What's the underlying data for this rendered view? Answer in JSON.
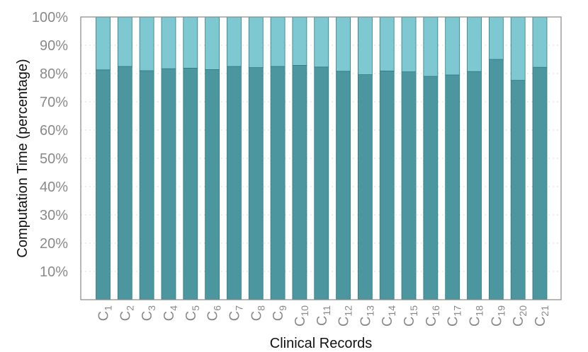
{
  "chart_data": {
    "type": "bar",
    "stacked": true,
    "title": "",
    "xlabel": "Clinical Records",
    "ylabel": "Computation Time (percentage)",
    "ylim": [
      0,
      100
    ],
    "yticks": [
      "10%",
      "20%",
      "30%",
      "40%",
      "50%",
      "60%",
      "70%",
      "80%",
      "90%",
      "100%"
    ],
    "grid": true,
    "legend": "none",
    "categories": [
      {
        "base": "C",
        "sub": "1"
      },
      {
        "base": "C",
        "sub": "2"
      },
      {
        "base": "C",
        "sub": "3"
      },
      {
        "base": "C",
        "sub": "4"
      },
      {
        "base": "C",
        "sub": "5"
      },
      {
        "base": "C",
        "sub": "6"
      },
      {
        "base": "C",
        "sub": "7"
      },
      {
        "base": "C",
        "sub": "8"
      },
      {
        "base": "C",
        "sub": "9"
      },
      {
        "base": "C",
        "sub": "10"
      },
      {
        "base": "C",
        "sub": "11"
      },
      {
        "base": "C",
        "sub": "12"
      },
      {
        "base": "C",
        "sub": "13"
      },
      {
        "base": "C",
        "sub": "14"
      },
      {
        "base": "C",
        "sub": "15"
      },
      {
        "base": "C",
        "sub": "16"
      },
      {
        "base": "C",
        "sub": "17"
      },
      {
        "base": "C",
        "sub": "18"
      },
      {
        "base": "C",
        "sub": "19"
      },
      {
        "base": "C",
        "sub": "20"
      },
      {
        "base": "C",
        "sub": "21"
      }
    ],
    "series": [
      {
        "values": [
          81.3,
          82.5,
          81.0,
          81.7,
          81.9,
          81.4,
          82.5,
          82.1,
          82.5,
          82.9,
          82.3,
          80.8,
          79.6,
          80.9,
          80.6,
          79.0,
          79.5,
          80.7,
          85.0,
          77.6,
          82.2
        ],
        "color": "#4c969f"
      },
      {
        "values": [
          18.7,
          17.5,
          19.0,
          18.3,
          18.1,
          18.6,
          17.5,
          17.9,
          17.5,
          17.1,
          17.7,
          19.2,
          20.4,
          19.1,
          19.4,
          21.0,
          20.5,
          19.3,
          15.0,
          22.4,
          17.8
        ],
        "color": "#7ec8d1"
      }
    ],
    "colors": {
      "bar_edge": "#2f7c86",
      "axis": "#888888",
      "grid": "#dcdcdc"
    }
  }
}
